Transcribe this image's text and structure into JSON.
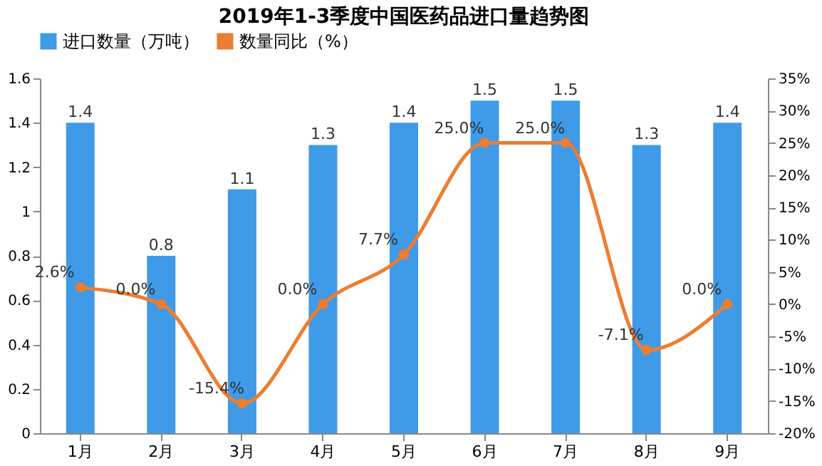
{
  "chart_data": {
    "type": "bar",
    "title": "2019年1-3季度中国医药品进口量趋势图",
    "categories": [
      "1月",
      "2月",
      "3月",
      "4月",
      "5月",
      "6月",
      "7月",
      "8月",
      "9月"
    ],
    "series": [
      {
        "name": "进口数量（万吨）",
        "color": "#3f9ae8",
        "values": [
          1.4,
          0.8,
          1.1,
          1.3,
          1.4,
          1.5,
          1.5,
          1.3,
          1.4
        ]
      },
      {
        "name": "数量同比（%）",
        "type": "line",
        "axis": "y2",
        "color": "#ed7d31",
        "marker": "circle",
        "values": [
          2.6,
          0.0,
          -15.4,
          0.0,
          7.7,
          25.0,
          25.0,
          -7.1,
          0.0
        ],
        "value_labels": [
          "2.6%",
          "0.0%",
          "-15.4%",
          "0.0%",
          "7.7%",
          "25.0%",
          "25.0%",
          "-7.1%",
          "0.0%"
        ]
      }
    ],
    "ylim": [
      0,
      1.6
    ],
    "yticks": [
      0,
      0.2,
      0.4,
      0.6,
      0.8,
      1,
      1.2,
      1.4,
      1.6
    ],
    "y2lim": [
      -20,
      35
    ],
    "y2ticks": [
      {
        "value": -20,
        "label": "-20%"
      },
      {
        "value": -15,
        "label": "-15%"
      },
      {
        "value": -10,
        "label": "-10%"
      },
      {
        "value": -5,
        "label": "-5%"
      },
      {
        "value": 0,
        "label": "0%"
      },
      {
        "value": 5,
        "label": "5%"
      },
      {
        "value": 10,
        "label": "10%"
      },
      {
        "value": 15,
        "label": "15%"
      },
      {
        "value": 20,
        "label": "20%"
      },
      {
        "value": 25,
        "label": "25%"
      },
      {
        "value": 30,
        "label": "30%"
      },
      {
        "value": 35,
        "label": "35%"
      }
    ],
    "data_labels": true,
    "grid": false,
    "legend": "top"
  }
}
